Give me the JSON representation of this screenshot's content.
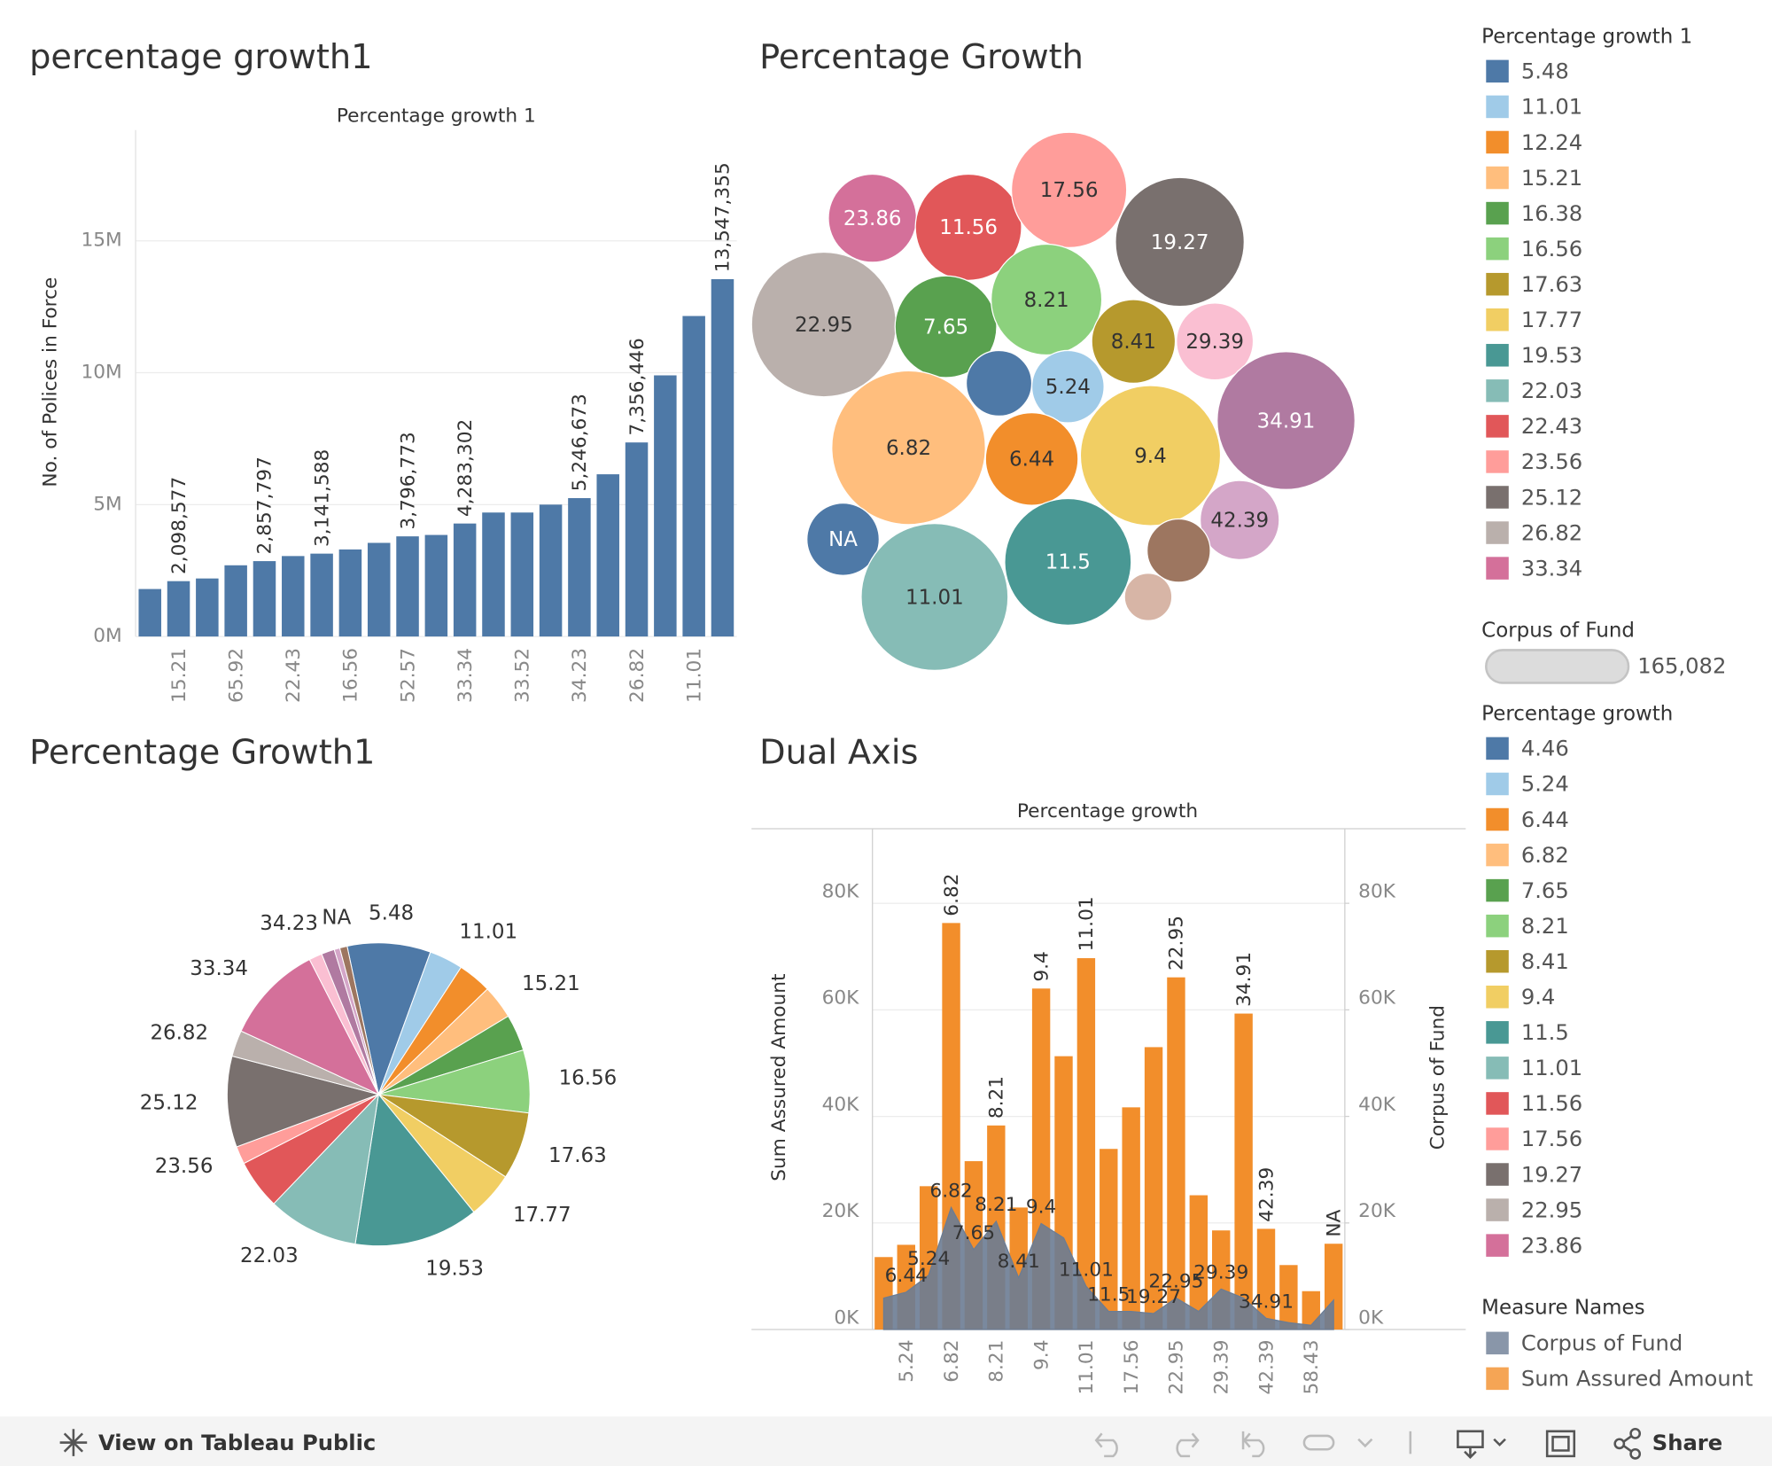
{
  "chart_data": [
    {
      "type": "bar",
      "title": "percentage growth1",
      "x_label": "Percentage growth 1",
      "y_label": "No. of Polices in Force",
      "categories": [
        null,
        "15.21",
        null,
        "65.92",
        null,
        "22.43",
        null,
        "16.56",
        null,
        "52.57",
        null,
        "33.34",
        null,
        "33.52",
        null,
        "34.23",
        null,
        "26.82",
        null,
        "11.01",
        null
      ],
      "values": [
        1800000,
        2098577,
        2200000,
        2700000,
        2857797,
        3050000,
        3141588,
        3300000,
        3550000,
        3796773,
        3850000,
        4283302,
        4700000,
        4700000,
        5000000,
        5246673,
        6150000,
        7356446,
        9900000,
        12150000,
        13547355
      ],
      "value_labels": [
        null,
        "2,098,577",
        null,
        null,
        "2,857,797",
        null,
        "3,141,588",
        null,
        null,
        "3,796,773",
        null,
        "4,283,302",
        null,
        null,
        null,
        "5,246,673",
        null,
        "7,356,446",
        null,
        null,
        "13,547,355"
      ],
      "color": "#4e79a7",
      "ylim": [
        0,
        19200000
      ],
      "yticks": [
        {
          "value": 0,
          "label": "0M"
        },
        {
          "value": 5000000,
          "label": "5M"
        },
        {
          "value": 10000000,
          "label": "10M"
        },
        {
          "value": 15000000,
          "label": "15M"
        }
      ],
      "grid": true
    },
    {
      "type": "bubble",
      "title": "Percentage Growth",
      "labels": [
        "23.86",
        "11.56",
        "17.56",
        "19.27",
        "22.95",
        "7.65",
        "8.21",
        "8.41",
        "29.39",
        null,
        "5.24",
        "6.82",
        "6.44",
        "9.4",
        "34.91",
        "NA",
        "42.39",
        "11.01",
        "11.5",
        null,
        null
      ],
      "values": [
        54300,
        78860,
        92860,
        115990,
        146230,
        72290,
        85710,
        48880,
        41270,
        30030,
        36560,
        165082,
        60010,
        137230,
        132840,
        36560,
        43730,
        150840,
        111960,
        27990,
        15750
      ],
      "colors": [
        "#d4709a",
        "#e15759",
        "#ff9d9a",
        "#79706e",
        "#bab0ac",
        "#59a14f",
        "#8cd17d",
        "#b6992d",
        "#fabfd2",
        "#4e79a7",
        "#a0cbe8",
        "#ffbe7d",
        "#f28e2b",
        "#f1ce63",
        "#b07aa1",
        "#4e79a7",
        "#d4a6c8",
        "#86bcb6",
        "#499894",
        "#9d7660",
        "#d7b5a6"
      ]
    },
    {
      "type": "pie",
      "title": "Percentage Growth1",
      "categories": [
        "5.48",
        "11.01",
        null,
        "15.21",
        null,
        "16.56",
        "17.63",
        "17.77",
        "19.53",
        "22.03",
        null,
        "23.56",
        "25.12",
        "26.82",
        "33.34",
        null,
        "34.23",
        null,
        "NA"
      ],
      "values": [
        8.9,
        3.6,
        3.6,
        3.6,
        3.9,
        6.7,
        7.2,
        5,
        13.3,
        9.7,
        5.3,
        1.9,
        9.7,
        2.8,
        10.6,
        1.4,
        1.4,
        0.6,
        0.8
      ],
      "colors": [
        "#4e79a7",
        "#a0cbe8",
        "#f28e2b",
        "#ffbe7d",
        "#59a14f",
        "#8cd17d",
        "#b6992d",
        "#f1ce63",
        "#499894",
        "#86bcb6",
        "#e15759",
        "#ff9d9a",
        "#79706e",
        "#bab0ac",
        "#d4709a",
        "#fabfd2",
        "#b07aa1",
        "#d4a6c8",
        "#9d7660"
      ]
    },
    {
      "type": "combo",
      "title": "Dual Axis",
      "x_label": "Percentage growth",
      "y_label": "Sum Assured Amount",
      "y2_label": "Corpus of Fund",
      "categories": [
        null,
        "5.24",
        null,
        "6.82",
        null,
        "8.21",
        null,
        "9.4",
        null,
        "11.01",
        null,
        "17.56",
        null,
        "22.95",
        null,
        "29.39",
        null,
        "42.39",
        null,
        "58.43",
        null
      ],
      "series": [
        {
          "name": "Sum Assured Amount",
          "color": "#f28e2b",
          "mark": "bar",
          "values": [
            13600,
            15900,
            26900,
            76300,
            31600,
            38300,
            22900,
            64000,
            51300,
            69700,
            33900,
            41700,
            53000,
            66100,
            25200,
            18600,
            59300,
            18900,
            12100,
            7200,
            16100
          ],
          "point_labels": [
            null,
            null,
            null,
            "6.82",
            null,
            "8.21",
            null,
            "9.4",
            null,
            "11.01",
            null,
            null,
            null,
            "22.95",
            null,
            null,
            "34.91",
            "42.39",
            null,
            null,
            "NA"
          ]
        },
        {
          "name": "Corpus of Fund",
          "color": "#6b7c93",
          "mark": "area",
          "axis": "y2",
          "values": [
            5900,
            7000,
            10200,
            22900,
            15000,
            20300,
            9700,
            19900,
            17200,
            8100,
            3400,
            3400,
            3000,
            5900,
            3400,
            7600,
            5900,
            2100,
            1300,
            800,
            5500
          ],
          "point_labels": [
            null,
            "6.44",
            "5.24",
            "6.82",
            "7.65",
            "8.21",
            "8.41",
            "9.4",
            null,
            "11.01",
            "11.5",
            null,
            "19.27",
            "22.95",
            null,
            "29.39",
            null,
            "34.91",
            null,
            null,
            null
          ]
        }
      ],
      "ylim": [
        0,
        94000
      ],
      "yticks": [
        {
          "value": 0,
          "label": "0K"
        },
        {
          "value": 20000,
          "label": "20K"
        },
        {
          "value": 40000,
          "label": "40K"
        },
        {
          "value": 60000,
          "label": "60K"
        },
        {
          "value": 80000,
          "label": "80K"
        }
      ],
      "y2lim": [
        0,
        94000
      ],
      "y2ticks": [
        {
          "value": 0,
          "label": "0K"
        },
        {
          "value": 20000,
          "label": "20K"
        },
        {
          "value": 40000,
          "label": "40K"
        },
        {
          "value": 60000,
          "label": "60K"
        },
        {
          "value": 80000,
          "label": "80K"
        }
      ],
      "grid": true
    }
  ],
  "legends": [
    {
      "title": "Percentage growth 1",
      "entries": [
        {
          "label": "5.48",
          "color": "#4e79a7"
        },
        {
          "label": "11.01",
          "color": "#a0cbe8"
        },
        {
          "label": "12.24",
          "color": "#f28e2b"
        },
        {
          "label": "15.21",
          "color": "#ffbe7d"
        },
        {
          "label": "16.38",
          "color": "#59a14f"
        },
        {
          "label": "16.56",
          "color": "#8cd17d"
        },
        {
          "label": "17.63",
          "color": "#b6992d"
        },
        {
          "label": "17.77",
          "color": "#f1ce63"
        },
        {
          "label": "19.53",
          "color": "#499894"
        },
        {
          "label": "22.03",
          "color": "#86bcb6"
        },
        {
          "label": "22.43",
          "color": "#e15759"
        },
        {
          "label": "23.56",
          "color": "#ff9d9a"
        },
        {
          "label": "25.12",
          "color": "#79706e"
        },
        {
          "label": "26.82",
          "color": "#bab0ac"
        },
        {
          "label": "33.34",
          "color": "#d4709a"
        }
      ]
    },
    {
      "title": "Corpus of Fund",
      "value": 165082,
      "label": "165,082"
    },
    {
      "title": "Percentage growth",
      "entries": [
        {
          "label": "4.46",
          "color": "#4e79a7"
        },
        {
          "label": "5.24",
          "color": "#a0cbe8"
        },
        {
          "label": "6.44",
          "color": "#f28e2b"
        },
        {
          "label": "6.82",
          "color": "#ffbe7d"
        },
        {
          "label": "7.65",
          "color": "#59a14f"
        },
        {
          "label": "8.21",
          "color": "#8cd17d"
        },
        {
          "label": "8.41",
          "color": "#b6992d"
        },
        {
          "label": "9.4",
          "color": "#f1ce63"
        },
        {
          "label": "11.5",
          "color": "#499894"
        },
        {
          "label": "11.01",
          "color": "#86bcb6"
        },
        {
          "label": "11.56",
          "color": "#e15759"
        },
        {
          "label": "17.56",
          "color": "#ff9d9a"
        },
        {
          "label": "19.27",
          "color": "#79706e"
        },
        {
          "label": "22.95",
          "color": "#bab0ac"
        },
        {
          "label": "23.86",
          "color": "#d4709a"
        }
      ]
    },
    {
      "title": "Measure Names"
    }
  ],
  "toolbar": {
    "link": "View on Tableau Public",
    "share": "Share"
  }
}
